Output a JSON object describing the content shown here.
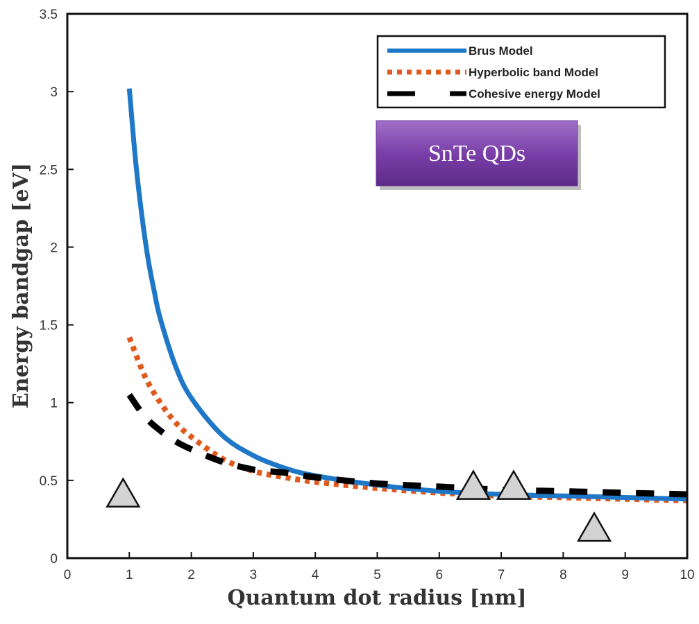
{
  "chart_data": {
    "type": "line",
    "title": "",
    "xlabel": "Quantum dot radius [nm]",
    "ylabel": "Energy bandgap [eV]",
    "xlim": [
      0,
      10
    ],
    "ylim": [
      0,
      3.5
    ],
    "xticks": [
      "0",
      "1",
      "2",
      "3",
      "4",
      "5",
      "6",
      "7",
      "8",
      "9",
      "10"
    ],
    "yticks": [
      "0",
      "0.5",
      "1",
      "1.5",
      "2",
      "2.5",
      "3",
      "3.5"
    ],
    "grid": false,
    "legend_position": "top-right",
    "annotation": "SnTe QDs",
    "series": [
      {
        "name": "Brus Model",
        "color": "#1f77c8",
        "style": "solid",
        "x": [
          1,
          1.1,
          1.2,
          1.3,
          1.4,
          1.5,
          1.75,
          2,
          2.5,
          3,
          3.5,
          4,
          5,
          6,
          7,
          8,
          9,
          10
        ],
        "y": [
          3.02,
          2.56,
          2.21,
          1.93,
          1.72,
          1.54,
          1.23,
          1.03,
          0.79,
          0.66,
          0.58,
          0.53,
          0.47,
          0.43,
          0.41,
          0.4,
          0.39,
          0.38
        ]
      },
      {
        "name": "Hyperbolic band Model",
        "color": "#e05a1e",
        "style": "dotted",
        "x": [
          1,
          1.25,
          1.5,
          1.75,
          2,
          2.5,
          3,
          3.5,
          4,
          5,
          6,
          7,
          8,
          9,
          10
        ],
        "y": [
          1.42,
          1.17,
          1.0,
          0.87,
          0.78,
          0.64,
          0.56,
          0.52,
          0.49,
          0.45,
          0.42,
          0.4,
          0.39,
          0.38,
          0.37
        ]
      },
      {
        "name": "Cohesive energy Model",
        "color": "#000000",
        "style": "dashed",
        "x": [
          1,
          1.25,
          1.5,
          1.75,
          2,
          2.5,
          3,
          3.5,
          4,
          5,
          6,
          7,
          8,
          9,
          10
        ],
        "y": [
          1.05,
          0.91,
          0.82,
          0.75,
          0.7,
          0.62,
          0.57,
          0.55,
          0.52,
          0.48,
          0.46,
          0.44,
          0.43,
          0.42,
          0.41
        ]
      }
    ],
    "markers": {
      "shape": "triangle",
      "color": "#d3d3d3",
      "points": [
        {
          "x": 0.9,
          "y": 0.42
        },
        {
          "x": 6.55,
          "y": 0.47
        },
        {
          "x": 7.2,
          "y": 0.47
        },
        {
          "x": 8.5,
          "y": 0.2
        }
      ]
    }
  }
}
